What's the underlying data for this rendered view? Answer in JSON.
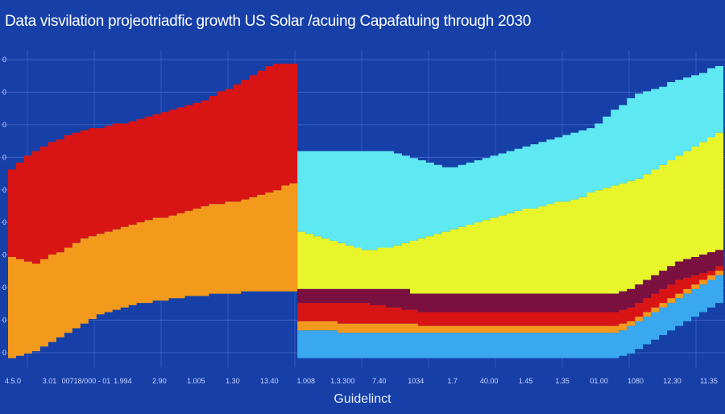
{
  "chart_data": {
    "type": "area",
    "title": "Data visvilation projeotriadfic growth US Solar /acuing Capafatuing through 2030",
    "xlabel": "Guidelinct",
    "ylabel": "",
    "x_tick_labels": [
      "4.5.0",
      "3.01",
      "00718/000 - 01",
      "1.994",
      "2.90",
      "1.005",
      "1.30",
      "13.40",
      "1.008",
      "1.3.300",
      "7.40",
      "1034",
      "1.7",
      "40.00",
      "1.45",
      "1.35",
      "01.00",
      "1080",
      "12.30",
      "11.35"
    ],
    "y_tick_labels": [
      "0",
      "0",
      "0",
      "0",
      "0",
      "0",
      "0",
      "0",
      "0",
      "0"
    ],
    "grid": true,
    "legend": "none",
    "colors": {
      "background": "#1640a8",
      "red": "#d81414",
      "orange": "#f39a1c",
      "cyan": "#5de8f2",
      "yellow": "#e8f52a",
      "light_blue": "#3aa8f0",
      "maroon": "#7a1040"
    },
    "panels": [
      {
        "name": "left",
        "x": [
          0,
          1,
          2,
          3,
          4,
          5,
          6,
          7,
          8,
          9,
          10,
          11,
          12,
          13,
          14,
          15,
          16,
          17,
          18,
          19,
          20,
          21,
          22,
          23,
          24,
          25,
          26,
          27,
          28,
          29,
          30,
          31,
          32,
          33,
          34,
          35
        ],
        "series": [
          {
            "color_key": "red",
            "top": [
              72,
              75,
              78,
              80,
              82,
              84,
              85,
              87,
              88,
              89,
              90,
              90,
              91,
              92,
              92,
              93,
              94,
              95,
              96,
              97,
              98,
              99,
              100,
              101,
              102,
              104,
              106,
              107,
              109,
              111,
              113,
              115,
              117,
              118,
              118,
              118
            ],
            "bottom": [
              34,
              33,
              32,
              31,
              33,
              35,
              36,
              38,
              40,
              42,
              43,
              44,
              45,
              46,
              47,
              48,
              49,
              50,
              51,
              51,
              52,
              53,
              54,
              55,
              56,
              57,
              57,
              58,
              58,
              59,
              60,
              61,
              62,
              63,
              65,
              66
            ]
          },
          {
            "color_key": "orange",
            "top": [
              34,
              33,
              32,
              31,
              33,
              35,
              36,
              38,
              40,
              42,
              43,
              44,
              45,
              46,
              47,
              48,
              49,
              50,
              51,
              51,
              52,
              53,
              54,
              55,
              56,
              57,
              57,
              58,
              58,
              59,
              60,
              61,
              62,
              63,
              65,
              66
            ],
            "bottom": [
              -10,
              -9,
              -8,
              -7,
              -5,
              -3,
              -1,
              1,
              3,
              5,
              7,
              9,
              10,
              11,
              12,
              13,
              14,
              14,
              15,
              15,
              16,
              16,
              17,
              17,
              17,
              18,
              18,
              18,
              18,
              19,
              19,
              19,
              19,
              19,
              19,
              19
            ]
          }
        ]
      },
      {
        "name": "right",
        "x": [
          36,
          37,
          38,
          39,
          40,
          41,
          42,
          43,
          44,
          45,
          46,
          47,
          48,
          49,
          50,
          51,
          52,
          53,
          54,
          55,
          56,
          57,
          58,
          59,
          60,
          61,
          62,
          63,
          64,
          65,
          66,
          67,
          68,
          69,
          70,
          71,
          72,
          73,
          74,
          75,
          76,
          77,
          78,
          79,
          80,
          81,
          82,
          83,
          84,
          85,
          86,
          87,
          88
        ],
        "series": [
          {
            "color_key": "cyan",
            "top": [
              80,
              80,
              80,
              80,
              80,
              80,
              80,
              80,
              80,
              80,
              80,
              80,
              79,
              78,
              77,
              76,
              75,
              74,
              73,
              73,
              74,
              75,
              76,
              77,
              78,
              79,
              80,
              81,
              82,
              83,
              84,
              85,
              86,
              87,
              88,
              89,
              90,
              92,
              95,
              98,
              100,
              103,
              105,
              106,
              107,
              108,
              110,
              111,
              112,
              113,
              114,
              116,
              117
            ],
            "bottom": [
              45,
              44,
              43,
              42,
              41,
              40,
              39,
              38,
              37,
              37,
              38,
              38,
              39,
              40,
              41,
              42,
              43,
              44,
              45,
              46,
              47,
              48,
              49,
              50,
              51,
              52,
              53,
              54,
              55,
              55,
              56,
              57,
              58,
              58,
              59,
              60,
              62,
              63,
              64,
              65,
              66,
              67,
              68,
              70,
              72,
              74,
              76,
              78,
              80,
              82,
              84,
              86,
              88
            ]
          },
          {
            "color_key": "yellow",
            "top": [
              45,
              44,
              43,
              42,
              41,
              40,
              39,
              38,
              37,
              37,
              38,
              38,
              39,
              40,
              41,
              42,
              43,
              44,
              45,
              46,
              47,
              48,
              49,
              50,
              51,
              52,
              53,
              54,
              55,
              55,
              56,
              57,
              58,
              58,
              59,
              60,
              62,
              63,
              64,
              65,
              66,
              67,
              68,
              70,
              72,
              74,
              76,
              78,
              80,
              82,
              84,
              86,
              88
            ],
            "bottom": [
              20,
              20,
              20,
              20,
              20,
              20,
              20,
              20,
              20,
              20,
              20,
              20,
              20,
              20,
              18,
              18,
              18,
              18,
              18,
              18,
              18,
              18,
              18,
              18,
              18,
              18,
              18,
              18,
              18,
              18,
              18,
              18,
              18,
              18,
              18,
              18,
              18,
              18,
              18,
              18,
              19,
              20,
              22,
              24,
              26,
              28,
              30,
              32,
              33,
              34,
              35,
              36,
              37
            ]
          },
          {
            "color_key": "maroon",
            "top": [
              20,
              20,
              20,
              20,
              20,
              20,
              20,
              20,
              20,
              20,
              20,
              20,
              20,
              20,
              18,
              18,
              18,
              18,
              18,
              18,
              18,
              18,
              18,
              18,
              18,
              18,
              18,
              18,
              18,
              18,
              18,
              18,
              18,
              18,
              18,
              18,
              18,
              18,
              18,
              18,
              19,
              20,
              22,
              24,
              26,
              28,
              30,
              32,
              33,
              34,
              35,
              36,
              37
            ],
            "bottom": [
              14,
              14,
              14,
              14,
              14,
              14,
              14,
              14,
              14,
              13,
              13,
              12,
              12,
              11,
              11,
              10,
              10,
              10,
              10,
              10,
              10,
              10,
              10,
              10,
              10,
              10,
              10,
              10,
              10,
              10,
              10,
              10,
              10,
              10,
              10,
              10,
              10,
              10,
              10,
              10,
              11,
              12,
              14,
              16,
              18,
              20,
              22,
              24,
              25,
              26,
              27,
              28,
              30
            ]
          },
          {
            "color_key": "red",
            "top": [
              14,
              14,
              14,
              14,
              14,
              14,
              14,
              14,
              14,
              13,
              13,
              12,
              12,
              11,
              11,
              10,
              10,
              10,
              10,
              10,
              10,
              10,
              10,
              10,
              10,
              10,
              10,
              10,
              10,
              10,
              10,
              10,
              10,
              10,
              10,
              10,
              10,
              10,
              10,
              10,
              11,
              12,
              14,
              16,
              18,
              20,
              22,
              24,
              25,
              26,
              27,
              28,
              30
            ],
            "bottom": [
              6,
              6,
              6,
              6,
              6,
              5,
              5,
              5,
              5,
              5,
              5,
              5,
              5,
              5,
              5,
              4,
              4,
              4,
              4,
              4,
              4,
              4,
              4,
              4,
              4,
              4,
              4,
              4,
              4,
              4,
              4,
              4,
              4,
              4,
              4,
              4,
              4,
              4,
              4,
              4,
              5,
              6,
              8,
              10,
              12,
              14,
              16,
              18,
              20,
              22,
              24,
              26,
              28
            ]
          },
          {
            "color_key": "orange",
            "top": [
              6,
              6,
              6,
              6,
              6,
              5,
              5,
              5,
              5,
              5,
              5,
              5,
              5,
              5,
              5,
              4,
              4,
              4,
              4,
              4,
              4,
              4,
              4,
              4,
              4,
              4,
              4,
              4,
              4,
              4,
              4,
              4,
              4,
              4,
              4,
              4,
              4,
              4,
              4,
              4,
              5,
              6,
              8,
              10,
              12,
              14,
              16,
              18,
              20,
              22,
              24,
              26,
              28
            ],
            "bottom": [
              2,
              2,
              2,
              2,
              2,
              1,
              1,
              1,
              1,
              1,
              1,
              1,
              1,
              1,
              1,
              1,
              1,
              1,
              1,
              1,
              1,
              1,
              1,
              1,
              1,
              1,
              1,
              1,
              1,
              1,
              1,
              1,
              1,
              1,
              1,
              1,
              1,
              1,
              1,
              1,
              2,
              4,
              6,
              8,
              10,
              12,
              14,
              16,
              18,
              20,
              22,
              24,
              26
            ]
          },
          {
            "color_key": "light_blue",
            "top": [
              2,
              2,
              2,
              2,
              2,
              1,
              1,
              1,
              1,
              1,
              1,
              1,
              1,
              1,
              1,
              1,
              1,
              1,
              1,
              1,
              1,
              1,
              1,
              1,
              1,
              1,
              1,
              1,
              1,
              1,
              1,
              1,
              1,
              1,
              1,
              1,
              1,
              1,
              1,
              1,
              2,
              4,
              6,
              8,
              10,
              12,
              14,
              16,
              18,
              20,
              22,
              24,
              26
            ],
            "bottom": [
              -10,
              -10,
              -10,
              -10,
              -10,
              -10,
              -10,
              -10,
              -10,
              -10,
              -10,
              -10,
              -10,
              -10,
              -10,
              -10,
              -10,
              -10,
              -10,
              -10,
              -10,
              -10,
              -10,
              -10,
              -10,
              -10,
              -10,
              -10,
              -10,
              -10,
              -10,
              -10,
              -10,
              -10,
              -10,
              -10,
              -10,
              -10,
              -10,
              -10,
              -9,
              -8,
              -6,
              -4,
              -2,
              0,
              2,
              4,
              6,
              8,
              10,
              12,
              14
            ]
          }
        ]
      }
    ],
    "xlim": [
      0,
      88
    ],
    "ylim": [
      -14,
      124
    ]
  }
}
